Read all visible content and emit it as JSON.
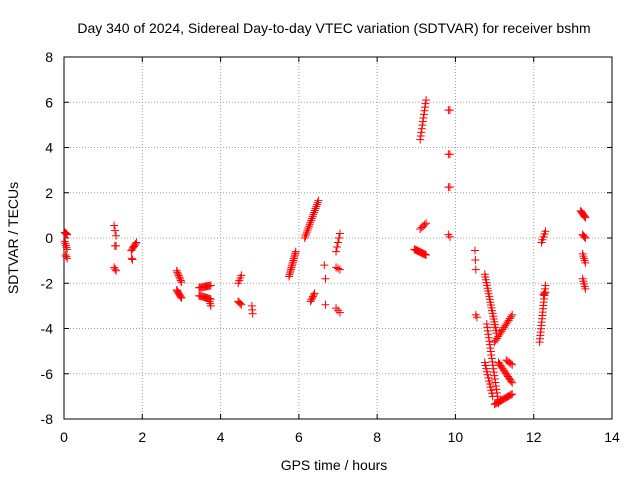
{
  "chart_data": {
    "type": "scatter",
    "title": "Day 340 of 2024, Sidereal Day-to-day VTEC variation (SDTVAR) for receiver bshm",
    "xlabel": "GPS time / hours",
    "ylabel": "SDTVAR / TECUs",
    "xlim": [
      0,
      14
    ],
    "ylim": [
      -8,
      8
    ],
    "xticks": [
      0,
      2,
      4,
      6,
      8,
      10,
      12,
      14
    ],
    "yticks": [
      -8,
      -6,
      -4,
      -2,
      0,
      2,
      4,
      6,
      8
    ],
    "xtick_labels": [
      "0",
      "2",
      "4",
      "6",
      "8",
      "10",
      "12",
      "14"
    ],
    "ytick_labels": [
      "-8",
      "-6",
      "-4",
      "-2",
      "0",
      "2",
      "4",
      "6",
      "8"
    ],
    "grid": true,
    "marker": "+",
    "color": "#ff0000",
    "segments": [
      {
        "x0": 0.02,
        "y0": 0.25,
        "x1": 0.08,
        "y1": 0.15,
        "n": 5
      },
      {
        "x0": 0.02,
        "y0": -0.15,
        "x1": 0.08,
        "y1": -0.5,
        "n": 5
      },
      {
        "x0": 0.04,
        "y0": -0.75,
        "x1": 0.08,
        "y1": -0.9,
        "n": 3
      },
      {
        "x0": 1.28,
        "y0": 0.55,
        "x1": 1.33,
        "y1": 0.1,
        "n": 3
      },
      {
        "x0": 1.3,
        "y0": -0.35,
        "x1": 1.33,
        "y1": -0.35,
        "n": 2
      },
      {
        "x0": 1.28,
        "y0": -1.3,
        "x1": 1.33,
        "y1": -1.45,
        "n": 3
      },
      {
        "x0": 1.72,
        "y0": -0.55,
        "x1": 1.85,
        "y1": -0.2,
        "n": 7
      },
      {
        "x0": 1.73,
        "y0": -0.9,
        "x1": 1.75,
        "y1": -0.95,
        "n": 2
      },
      {
        "x0": 2.88,
        "y0": -1.45,
        "x1": 3.0,
        "y1": -1.95,
        "n": 8
      },
      {
        "x0": 2.88,
        "y0": -2.3,
        "x1": 3.0,
        "y1": -2.65,
        "n": 8
      },
      {
        "x0": 3.45,
        "y0": -2.2,
        "x1": 3.75,
        "y1": -2.1,
        "n": 12
      },
      {
        "x0": 3.45,
        "y0": -2.55,
        "x1": 3.75,
        "y1": -2.7,
        "n": 12
      },
      {
        "x0": 3.72,
        "y0": -2.8,
        "x1": 3.75,
        "y1": -3.0,
        "n": 3
      },
      {
        "x0": 4.45,
        "y0": -2.0,
        "x1": 4.53,
        "y1": -1.65,
        "n": 4
      },
      {
        "x0": 4.45,
        "y0": -2.8,
        "x1": 4.53,
        "y1": -2.95,
        "n": 4
      },
      {
        "x0": 4.8,
        "y0": -3.0,
        "x1": 4.82,
        "y1": -3.35,
        "n": 3
      },
      {
        "x0": 5.75,
        "y0": -1.7,
        "x1": 5.92,
        "y1": -0.6,
        "n": 15
      },
      {
        "x0": 6.15,
        "y0": 0.0,
        "x1": 6.5,
        "y1": 1.65,
        "n": 20
      },
      {
        "x0": 6.3,
        "y0": -2.8,
        "x1": 6.4,
        "y1": -2.45,
        "n": 6
      },
      {
        "x0": 6.65,
        "y0": -1.2,
        "x1": 6.65,
        "y1": -1.2,
        "n": 1
      },
      {
        "x0": 6.68,
        "y0": -1.8,
        "x1": 6.68,
        "y1": -1.8,
        "n": 1
      },
      {
        "x0": 6.68,
        "y0": -2.95,
        "x1": 6.68,
        "y1": -2.95,
        "n": 1
      },
      {
        "x0": 6.95,
        "y0": -0.6,
        "x1": 7.05,
        "y1": 0.2,
        "n": 5
      },
      {
        "x0": 6.95,
        "y0": -1.3,
        "x1": 7.05,
        "y1": -1.4,
        "n": 3
      },
      {
        "x0": 6.95,
        "y0": -3.1,
        "x1": 7.05,
        "y1": -3.3,
        "n": 3
      },
      {
        "x0": 8.95,
        "y0": -0.5,
        "x1": 9.25,
        "y1": -0.75,
        "n": 14
      },
      {
        "x0": 9.1,
        "y0": 4.35,
        "x1": 9.25,
        "y1": 6.1,
        "n": 12
      },
      {
        "x0": 9.1,
        "y0": 0.4,
        "x1": 9.25,
        "y1": 0.65,
        "n": 5
      },
      {
        "x0": 9.82,
        "y0": 5.65,
        "x1": 9.86,
        "y1": 5.65,
        "n": 2
      },
      {
        "x0": 9.82,
        "y0": 3.7,
        "x1": 9.86,
        "y1": 3.7,
        "n": 2
      },
      {
        "x0": 9.82,
        "y0": 2.25,
        "x1": 9.86,
        "y1": 2.25,
        "n": 2
      },
      {
        "x0": 9.82,
        "y0": 0.15,
        "x1": 9.86,
        "y1": 0.05,
        "n": 2
      },
      {
        "x0": 10.5,
        "y0": -0.55,
        "x1": 10.52,
        "y1": -1.4,
        "n": 3
      },
      {
        "x0": 10.52,
        "y0": -3.4,
        "x1": 10.55,
        "y1": -3.5,
        "n": 2
      },
      {
        "x0": 10.75,
        "y0": -1.6,
        "x1": 11.05,
        "y1": -4.2,
        "n": 22
      },
      {
        "x0": 10.8,
        "y0": -3.8,
        "x1": 11.1,
        "y1": -7.3,
        "n": 24
      },
      {
        "x0": 10.75,
        "y0": -5.5,
        "x1": 10.95,
        "y1": -7.0,
        "n": 12
      },
      {
        "x0": 11.0,
        "y0": -7.35,
        "x1": 11.45,
        "y1": -6.9,
        "n": 16
      },
      {
        "x0": 11.0,
        "y0": -4.6,
        "x1": 11.45,
        "y1": -3.4,
        "n": 16
      },
      {
        "x0": 11.1,
        "y0": -5.5,
        "x1": 11.45,
        "y1": -6.4,
        "n": 14
      },
      {
        "x0": 11.3,
        "y0": -5.4,
        "x1": 11.45,
        "y1": -5.6,
        "n": 5
      },
      {
        "x0": 12.15,
        "y0": -4.6,
        "x1": 12.3,
        "y1": -2.1,
        "n": 18
      },
      {
        "x0": 12.2,
        "y0": -0.2,
        "x1": 12.3,
        "y1": 0.3,
        "n": 5
      },
      {
        "x0": 12.25,
        "y0": -2.5,
        "x1": 12.3,
        "y1": -2.4,
        "n": 3
      },
      {
        "x0": 13.2,
        "y0": 1.2,
        "x1": 13.32,
        "y1": 0.9,
        "n": 8
      },
      {
        "x0": 13.25,
        "y0": 0.15,
        "x1": 13.32,
        "y1": 0.0,
        "n": 4
      },
      {
        "x0": 13.25,
        "y0": -0.7,
        "x1": 13.32,
        "y1": -1.1,
        "n": 5
      },
      {
        "x0": 13.25,
        "y0": -1.8,
        "x1": 13.32,
        "y1": -2.25,
        "n": 5
      }
    ]
  }
}
